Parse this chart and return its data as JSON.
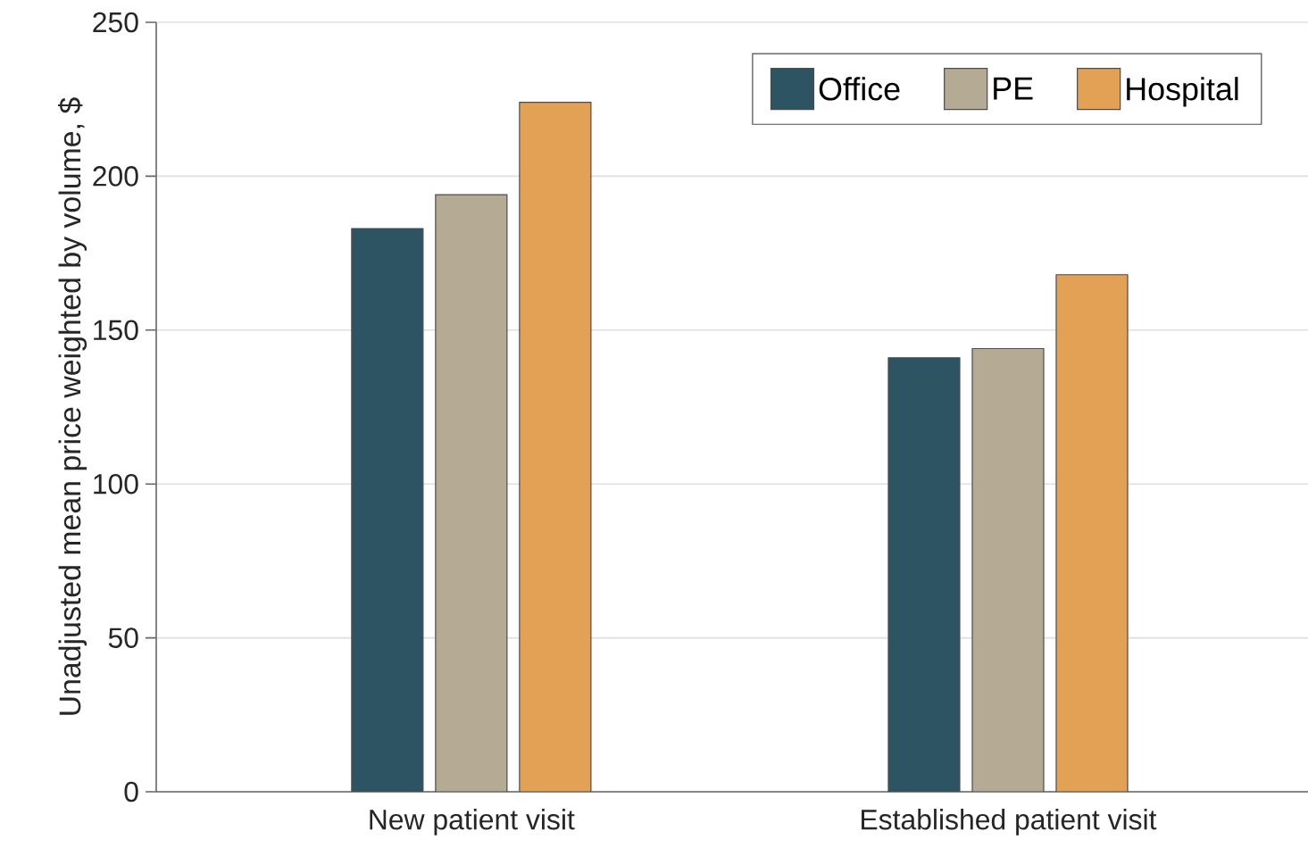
{
  "chart_data": {
    "type": "bar",
    "ylabel": "Unadjusted mean price weighted by volume, $",
    "categories": [
      "New patient visit",
      "Established patient visit"
    ],
    "series": [
      {
        "name": "Office",
        "color": "#2d5463",
        "values": [
          183,
          141
        ]
      },
      {
        "name": "PE",
        "color": "#b5aa94",
        "values": [
          194,
          144
        ]
      },
      {
        "name": "Hospital",
        "color": "#e3a156",
        "values": [
          224,
          168
        ]
      }
    ],
    "ylim": [
      0,
      250
    ],
    "yticks": [
      0,
      50,
      100,
      150,
      200,
      250
    ],
    "grid": "y",
    "legend": "top right"
  }
}
